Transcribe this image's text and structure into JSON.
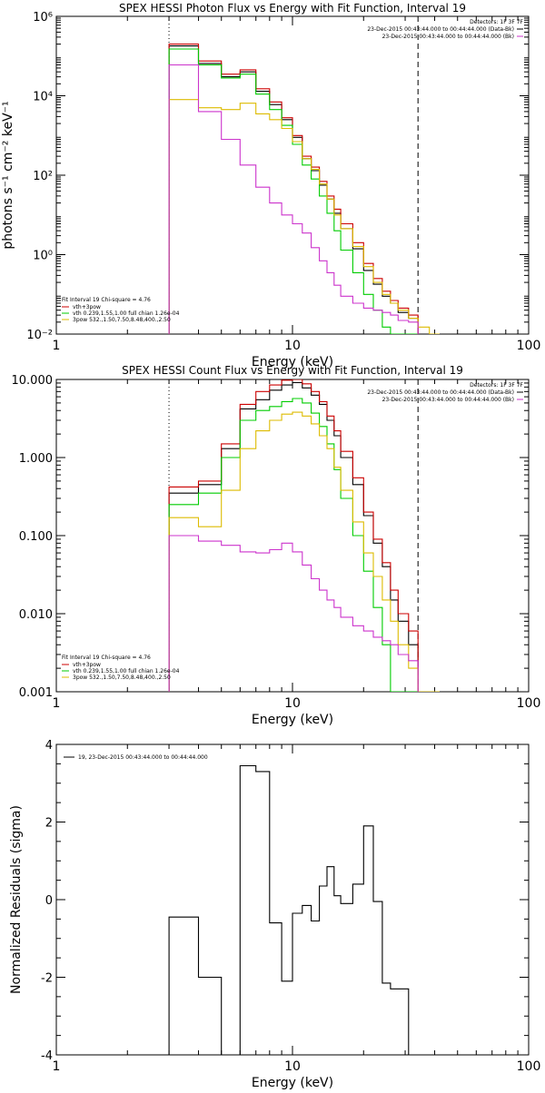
{
  "chart_data": [
    {
      "type": "line",
      "title": "SPEX HESSI Photon Flux vs Energy with Fit Function, Interval 19",
      "xlabel": "Energy (keV)",
      "ylabel": "photons s⁻¹ cm⁻² keV⁻¹",
      "xscale": "log",
      "yscale": "log",
      "xlim": [
        1,
        100
      ],
      "ylim": [
        0.01,
        1000000
      ],
      "x_ticks": [
        {
          "v": 1,
          "label": "1"
        },
        {
          "v": 10,
          "label": "10"
        },
        {
          "v": 100,
          "label": "100"
        }
      ],
      "y_ticks": [
        {
          "v": 0.01,
          "label": "10⁻²"
        },
        {
          "v": 1,
          "label": "10⁰"
        },
        {
          "v": 100,
          "label": "10²"
        },
        {
          "v": 10000,
          "label": "10⁴"
        },
        {
          "v": 1000000,
          "label": "10⁶"
        }
      ],
      "vlines": [
        {
          "x": 3,
          "style": "dotted"
        },
        {
          "x": 34,
          "style": "dashed"
        }
      ],
      "legend_top_right": {
        "detectors": "Detectors: 1F 3F 7F",
        "lines": [
          {
            "text": "23-Dec-2015 00:43:44.000 to 00:44:44.000 (Data-Bk)",
            "color": "#000000"
          },
          {
            "text": "23-Dec-2015 00:43:44.000 to 00:44:44.000 (Bk)",
            "color": "#cc33cc"
          }
        ]
      },
      "legend_bottom_left": {
        "header": "Fit Interval 19   Chi-square = 4.76",
        "lines": [
          {
            "text": "vth+3pow",
            "color": "#cc0000"
          },
          {
            "text": "vth 0.239,1.55,1.00  full chian 1.26e-04",
            "color": "#00cc00"
          },
          {
            "text": "3pow 532.,1.50,7.50,8.48,400.,2.50",
            "color": "#ddbb00"
          }
        ]
      },
      "series": [
        {
          "name": "Data-Bk",
          "color": "#000000",
          "edges": [
            3,
            4,
            5,
            6,
            7,
            8,
            9,
            10,
            11,
            12,
            13,
            14,
            15,
            16,
            18,
            20,
            22,
            24,
            26,
            28,
            31,
            34
          ],
          "values": [
            180000,
            65000,
            30000,
            40000,
            13000,
            6000,
            2500,
            900,
            260,
            130,
            56,
            25,
            11,
            4.5,
            1.4,
            0.4,
            0.18,
            0.09,
            0.06,
            0.035,
            0.025
          ]
        },
        {
          "name": "vth+3pow",
          "color": "#cc0000",
          "edges": [
            3,
            4,
            5,
            6,
            7,
            8,
            9,
            10,
            11,
            12,
            13,
            14,
            15,
            16,
            18,
            20,
            22,
            24,
            26,
            28,
            31,
            34
          ],
          "values": [
            200000,
            75000,
            35000,
            45000,
            15000,
            7000,
            2800,
            1000,
            300,
            160,
            70,
            30,
            14,
            6,
            2,
            0.6,
            0.25,
            0.12,
            0.07,
            0.045,
            0.03
          ]
        },
        {
          "name": "vth 0.239,1.55,1.00",
          "color": "#00cc00",
          "edges": [
            3,
            4,
            5,
            6,
            7,
            8,
            9,
            10,
            11,
            12,
            13,
            14,
            15,
            16,
            18,
            20,
            22,
            24,
            26,
            28,
            31,
            34
          ],
          "values": [
            150000,
            60000,
            28000,
            35000,
            11000,
            4500,
            1800,
            600,
            180,
            80,
            30,
            11,
            4,
            1.3,
            0.35,
            0.1,
            0.04,
            0.015,
            0.01,
            0.01,
            0.01
          ]
        },
        {
          "name": "3pow 532.,1.50,7.50,8.48,400.,2.50",
          "color": "#ddbb00",
          "edges": [
            3,
            4,
            5,
            6,
            7,
            8,
            9,
            10,
            11,
            12,
            13,
            14,
            15,
            16,
            18,
            20,
            22,
            24,
            26,
            28,
            31,
            34,
            38,
            42
          ],
          "values": [
            8000,
            5000,
            4500,
            6500,
            3500,
            2500,
            1500,
            700,
            260,
            140,
            60,
            25,
            10,
            4.5,
            1.6,
            0.5,
            0.2,
            0.1,
            0.06,
            0.04,
            0.025,
            0.015,
            0.01
          ]
        },
        {
          "name": "Bk",
          "color": "#cc33cc",
          "edges": [
            3,
            4,
            5,
            6,
            7,
            8,
            9,
            10,
            11,
            12,
            13,
            14,
            15,
            16,
            18,
            20,
            22,
            24,
            26,
            28,
            31,
            34
          ],
          "values": [
            60000,
            4000,
            800,
            180,
            50,
            20,
            10,
            6,
            3.5,
            1.5,
            0.7,
            0.35,
            0.17,
            0.09,
            0.06,
            0.045,
            0.04,
            0.035,
            0.03,
            0.022,
            0.02
          ]
        }
      ]
    },
    {
      "type": "line",
      "title": "SPEX HESSI Count Flux vs Energy with Fit Function, Interval 19",
      "xlabel": "Energy (keV)",
      "ylabel": "",
      "xscale": "log",
      "yscale": "log",
      "xlim": [
        1,
        100
      ],
      "ylim": [
        0.001,
        10
      ],
      "x_ticks": [
        {
          "v": 1,
          "label": "1"
        },
        {
          "v": 10,
          "label": "10"
        },
        {
          "v": 100,
          "label": "100"
        }
      ],
      "y_ticks": [
        {
          "v": 0.001,
          "label": "0.001"
        },
        {
          "v": 0.01,
          "label": "0.010"
        },
        {
          "v": 0.1,
          "label": "0.100"
        },
        {
          "v": 1,
          "label": "1.000"
        },
        {
          "v": 10,
          "label": "10.000"
        }
      ],
      "vlines": [
        {
          "x": 3,
          "style": "dotted"
        },
        {
          "x": 34,
          "style": "dashed"
        }
      ],
      "legend_top_right": {
        "detectors": "Detectors: 1F 3F 7F",
        "lines": [
          {
            "text": "23-Dec-2015 00:43:44.000 to 00:44:44.000 (Data-Bk)",
            "color": "#000000"
          },
          {
            "text": "23-Dec-2015 00:43:44.000 to 00:44:44.000 (Bk)",
            "color": "#cc33cc"
          }
        ]
      },
      "legend_bottom_left": {
        "header": "Fit Interval 19   Chi-square = 4.76",
        "lines": [
          {
            "text": "vth+3pow",
            "color": "#cc0000"
          },
          {
            "text": "vth 0.239,1.55,1.00  full chian 1.26e-04",
            "color": "#00cc00"
          },
          {
            "text": "3pow 532.,1.50,7.50,8.48,400.,2.50",
            "color": "#ddbb00"
          }
        ]
      },
      "series": [
        {
          "name": "Data-Bk",
          "color": "#000000",
          "edges": [
            3,
            4,
            5,
            6,
            7,
            8,
            9,
            10,
            11,
            12,
            13,
            14,
            15,
            16,
            18,
            20,
            22,
            24,
            26,
            28,
            31,
            34
          ],
          "values": [
            0.35,
            0.45,
            1.3,
            4.2,
            5.5,
            7.3,
            8.5,
            9.1,
            7.8,
            6.3,
            4.8,
            3.0,
            1.9,
            1.0,
            0.45,
            0.18,
            0.08,
            0.04,
            0.015,
            0.008,
            0.004
          ]
        },
        {
          "name": "vth+3pow",
          "color": "#cc0000",
          "edges": [
            3,
            4,
            5,
            6,
            7,
            8,
            9,
            10,
            11,
            12,
            13,
            14,
            15,
            16,
            18,
            20,
            22,
            24,
            26,
            28,
            31,
            34
          ],
          "values": [
            0.42,
            0.5,
            1.5,
            4.8,
            7.0,
            8.5,
            9.8,
            10.0,
            8.8,
            7.0,
            5.2,
            3.4,
            2.2,
            1.2,
            0.55,
            0.2,
            0.09,
            0.045,
            0.02,
            0.01,
            0.006
          ]
        },
        {
          "name": "vth 0.239,1.55,1.00",
          "color": "#00cc00",
          "edges": [
            3,
            4,
            5,
            6,
            7,
            8,
            9,
            10,
            11,
            12,
            13,
            14,
            15,
            16,
            18,
            20,
            22,
            24,
            26,
            28,
            31,
            34
          ],
          "values": [
            0.25,
            0.35,
            1.0,
            3.0,
            4.0,
            4.5,
            5.2,
            5.7,
            5.0,
            3.7,
            2.5,
            1.5,
            0.7,
            0.3,
            0.1,
            0.035,
            0.012,
            0.004,
            0.001,
            0.001,
            0.001
          ]
        },
        {
          "name": "3pow 532.,1.50,7.50,8.48,400.,2.50",
          "color": "#ddbb00",
          "edges": [
            3,
            4,
            5,
            6,
            7,
            8,
            9,
            10,
            11,
            12,
            13,
            14,
            15,
            16,
            18,
            20,
            22,
            24,
            26,
            28,
            31,
            34,
            38,
            42
          ],
          "values": [
            0.17,
            0.13,
            0.38,
            1.3,
            2.2,
            3.0,
            3.6,
            3.8,
            3.4,
            2.7,
            1.9,
            1.3,
            0.75,
            0.38,
            0.15,
            0.06,
            0.03,
            0.015,
            0.008,
            0.004,
            0.002,
            0.001,
            0.001
          ]
        },
        {
          "name": "Bk",
          "color": "#cc33cc",
          "edges": [
            3,
            4,
            5,
            6,
            7,
            8,
            9,
            10,
            11,
            12,
            13,
            14,
            15,
            16,
            18,
            20,
            22,
            24,
            26,
            28,
            31,
            34
          ],
          "values": [
            0.1,
            0.085,
            0.075,
            0.062,
            0.06,
            0.066,
            0.08,
            0.062,
            0.042,
            0.028,
            0.02,
            0.015,
            0.012,
            0.009,
            0.007,
            0.006,
            0.005,
            0.0045,
            0.004,
            0.003,
            0.0025
          ]
        }
      ]
    },
    {
      "type": "line",
      "title": "",
      "xlabel": "Energy (keV)",
      "ylabel": "Normalized Residuals (sigma)",
      "xscale": "log",
      "yscale": "linear",
      "xlim": [
        1,
        100
      ],
      "ylim": [
        -4,
        4
      ],
      "x_ticks": [
        {
          "v": 1,
          "label": "1"
        },
        {
          "v": 10,
          "label": "10"
        },
        {
          "v": 100,
          "label": "100"
        }
      ],
      "y_ticks": [
        {
          "v": -4,
          "label": "-4"
        },
        {
          "v": -2,
          "label": "-2"
        },
        {
          "v": 0,
          "label": "0"
        },
        {
          "v": 2,
          "label": "2"
        },
        {
          "v": 4,
          "label": "4"
        }
      ],
      "legend": {
        "text": "19, 23-Dec-2015 00:43:44.000 to 00:44:44.000",
        "color": "#000000"
      },
      "series": [
        {
          "name": "19, 23-Dec-2015 00:43:44.000 to 00:44:44.000",
          "color": "#000000",
          "edges": [
            3,
            4,
            5,
            6,
            7,
            8,
            9,
            10,
            11,
            12,
            13,
            14,
            15,
            16,
            18,
            20,
            22,
            24,
            26,
            28,
            31,
            34
          ],
          "values": [
            -0.45,
            -2.0,
            -4.0,
            3.45,
            3.3,
            -0.6,
            -2.1,
            -0.35,
            -0.15,
            -0.55,
            0.35,
            0.85,
            0.1,
            -0.1,
            0.4,
            1.9,
            -0.05,
            -2.15,
            -2.3,
            -2.3,
            -4.0
          ]
        }
      ]
    }
  ]
}
